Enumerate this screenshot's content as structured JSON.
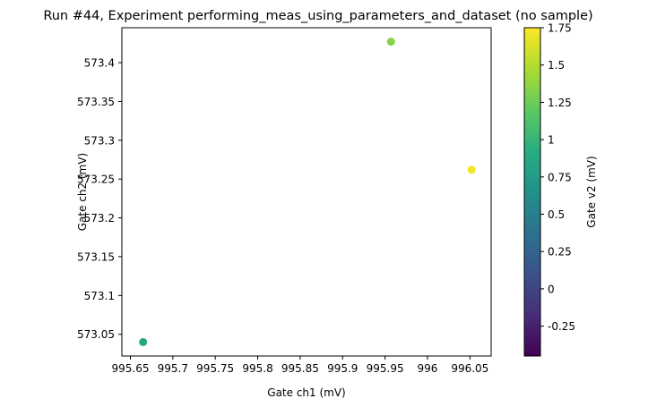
{
  "chart_data": {
    "type": "scatter",
    "title": "Run #44, Experiment performing_meas_using_parameters_and_dataset (no sample)",
    "xlabel": "Gate ch1 (mV)",
    "ylabel": "Gate ch2 (mV)",
    "colorbar_label": "Gate v2 (mV)",
    "colormap": "viridis",
    "xlim": [
      995.64,
      996.075
    ],
    "ylim": [
      573.022,
      573.445
    ],
    "clim": [
      -0.45,
      1.75
    ],
    "x_ticks": [
      995.65,
      995.7,
      995.75,
      995.8,
      995.85,
      995.9,
      995.95,
      996,
      996.05
    ],
    "x_tick_labels": [
      "995.65",
      "995.7",
      "995.75",
      "995.8",
      "995.85",
      "995.9",
      "995.95",
      "996",
      "996.05"
    ],
    "y_ticks": [
      573.05,
      573.1,
      573.15,
      573.2,
      573.25,
      573.3,
      573.35,
      573.4
    ],
    "y_tick_labels": [
      "573.05",
      "573.1",
      "573.15",
      "573.2",
      "573.25",
      "573.3",
      "573.35",
      "573.4"
    ],
    "c_ticks": [
      -0.25,
      0,
      0.25,
      0.5,
      0.75,
      1,
      1.25,
      1.5,
      1.75
    ],
    "c_tick_labels": [
      "-0.25",
      "0",
      "0.25",
      "0.5",
      "0.75",
      "1",
      "1.25",
      "1.5",
      "1.75"
    ],
    "grid": false,
    "points": [
      {
        "x": 995.665,
        "y": 573.04,
        "c": 0.85
      },
      {
        "x": 995.957,
        "y": 573.427,
        "c": 1.35
      },
      {
        "x": 996.052,
        "y": 573.262,
        "c": 1.72
      }
    ]
  }
}
